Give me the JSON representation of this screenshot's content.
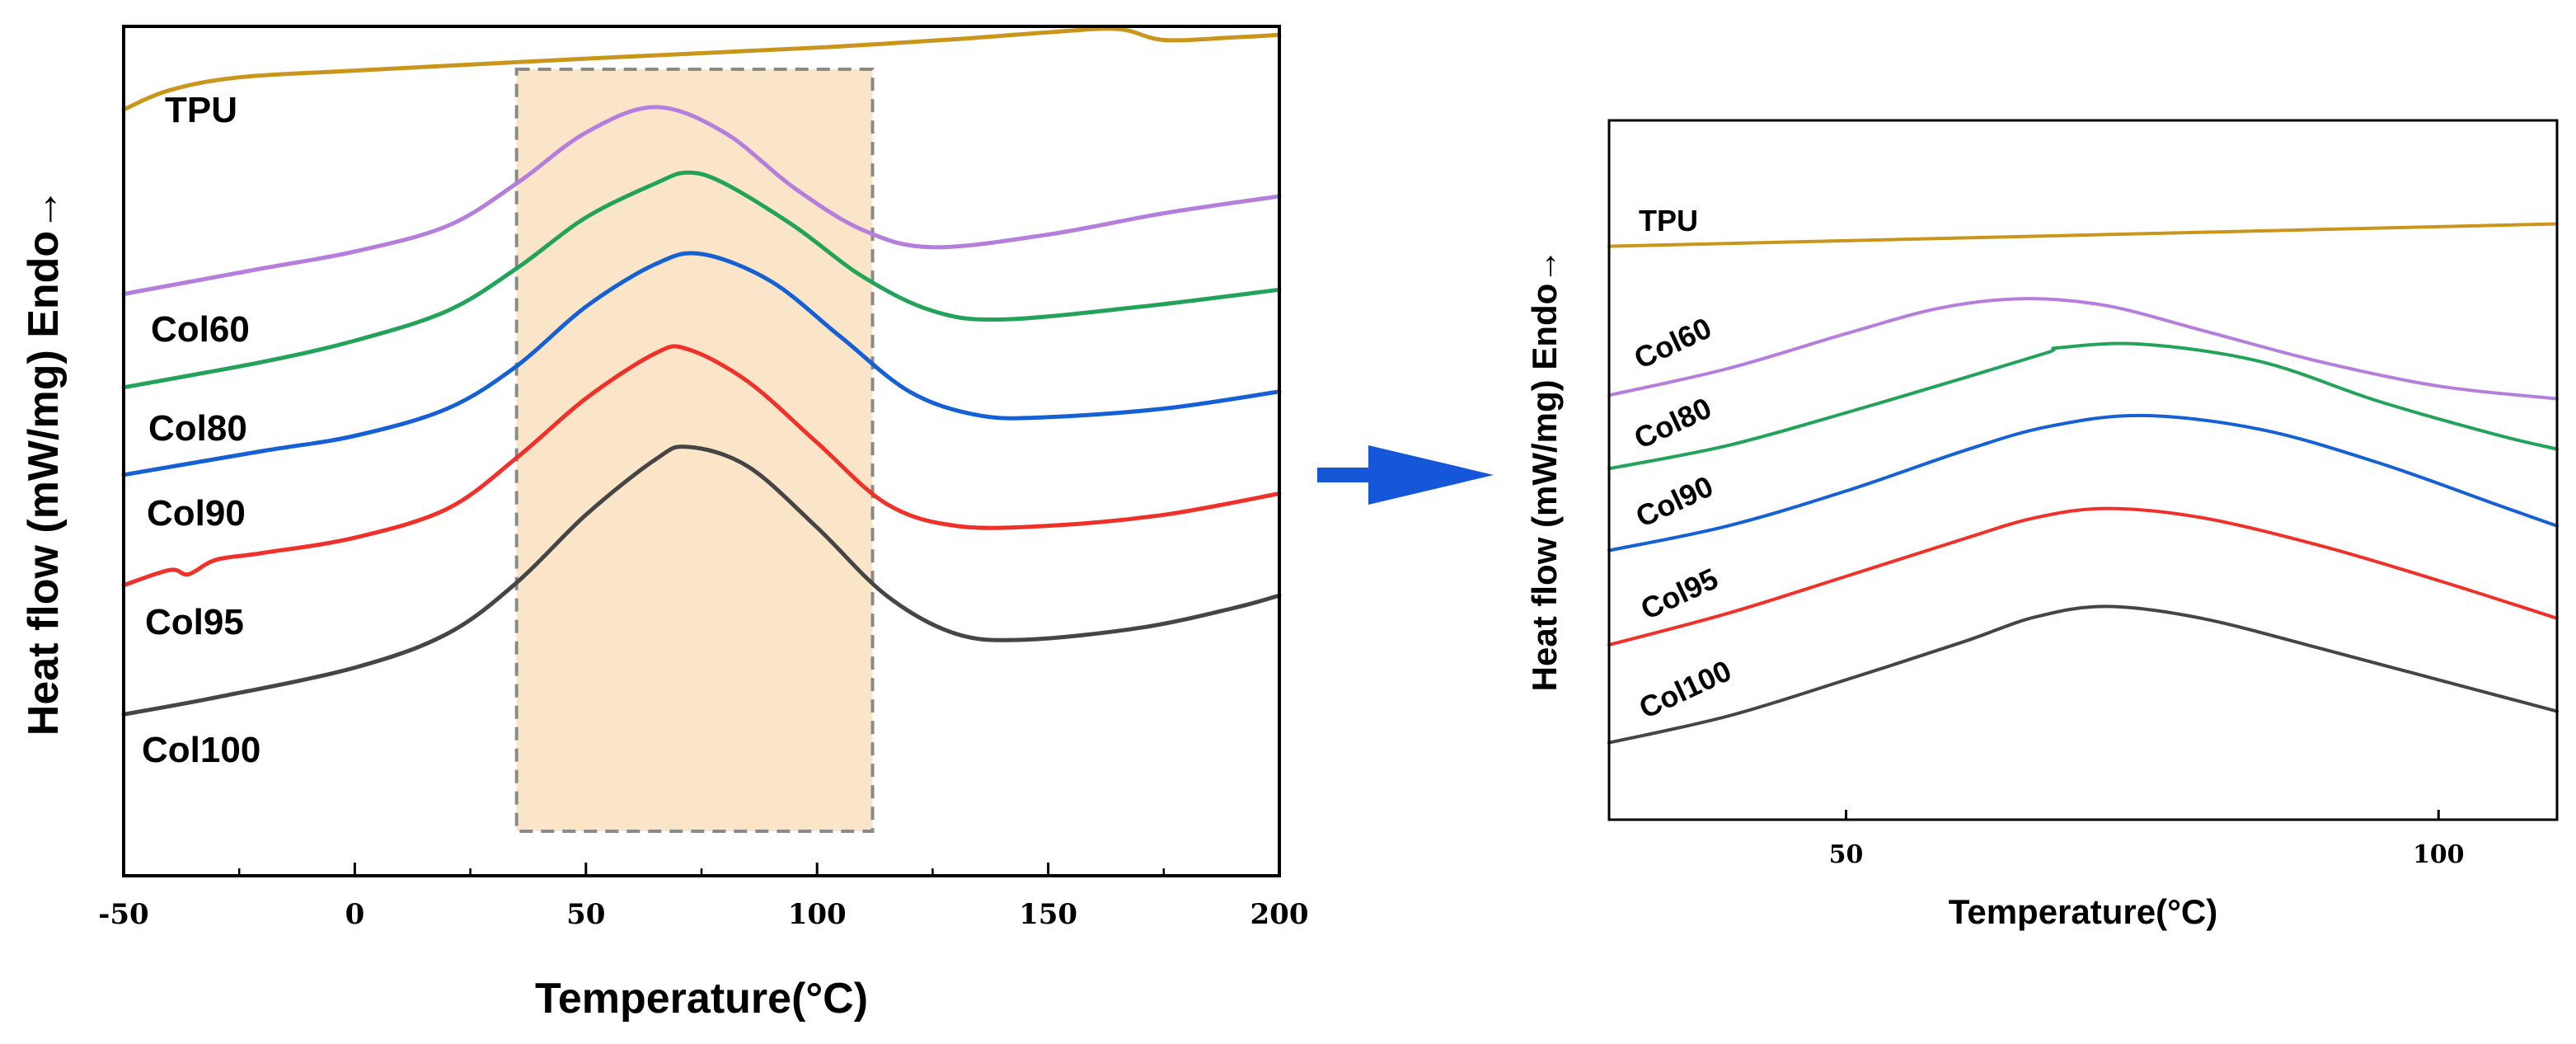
{
  "chart_data": [
    {
      "type": "line",
      "title": "",
      "xlabel": "Temperature(°C)",
      "ylabel": "Heat flow (mW/mg) Endo→",
      "xlim": [
        -50,
        200
      ],
      "xticks": [
        "-50",
        "0",
        "50",
        "100",
        "150",
        "200"
      ],
      "ylim": [
        0,
        10
      ],
      "highlight": {
        "x_range": [
          35,
          112
        ],
        "color": "#fbe5c8",
        "border": "#8a8a8a"
      },
      "series": [
        {
          "name": "TPU",
          "color": "#c9951a",
          "x": [
            -50,
            -40,
            -25,
            0,
            50,
            100,
            130,
            150,
            165,
            175,
            190,
            200
          ],
          "y": [
            9.02,
            9.25,
            9.4,
            9.48,
            9.62,
            9.75,
            9.85,
            9.93,
            9.97,
            9.84,
            9.87,
            9.9
          ]
        },
        {
          "name": "Col60",
          "color": "#b57edc",
          "x": [
            -50,
            -20,
            0,
            20,
            35,
            50,
            65,
            80,
            95,
            110,
            125,
            150,
            175,
            200
          ],
          "y": [
            6.85,
            7.15,
            7.35,
            7.65,
            8.15,
            8.75,
            9.05,
            8.75,
            8.1,
            7.6,
            7.4,
            7.55,
            7.8,
            8.0
          ]
        },
        {
          "name": "Col80",
          "color": "#23a35a",
          "x": [
            -50,
            -20,
            0,
            20,
            35,
            50,
            65,
            72,
            80,
            95,
            110,
            125,
            140,
            170,
            200
          ],
          "y": [
            5.75,
            6.05,
            6.3,
            6.65,
            7.15,
            7.75,
            8.15,
            8.28,
            8.15,
            7.65,
            7.05,
            6.65,
            6.55,
            6.7,
            6.9
          ]
        },
        {
          "name": "Col90",
          "color": "#1560d4",
          "x": [
            -50,
            -20,
            0,
            20,
            35,
            50,
            65,
            75,
            90,
            105,
            120,
            135,
            150,
            175,
            200
          ],
          "y": [
            4.72,
            5.0,
            5.18,
            5.5,
            6.0,
            6.7,
            7.2,
            7.32,
            7.0,
            6.35,
            5.7,
            5.42,
            5.4,
            5.5,
            5.7
          ]
        },
        {
          "name": "Col95",
          "color": "#f0312a",
          "x": [
            -50,
            -40,
            -36,
            -30,
            -20,
            0,
            20,
            35,
            50,
            65,
            72,
            85,
            100,
            115,
            130,
            150,
            175,
            200
          ],
          "y": [
            3.42,
            3.6,
            3.55,
            3.72,
            3.8,
            3.98,
            4.32,
            4.92,
            5.62,
            6.15,
            6.2,
            5.82,
            5.1,
            4.38,
            4.12,
            4.12,
            4.25,
            4.5
          ]
        },
        {
          "name": "Col100",
          "color": "#454545",
          "x": [
            -50,
            -30,
            0,
            20,
            35,
            50,
            65,
            72,
            85,
            100,
            115,
            130,
            145,
            170,
            190,
            200
          ],
          "y": [
            1.9,
            2.1,
            2.45,
            2.85,
            3.45,
            4.25,
            4.9,
            5.05,
            4.82,
            4.1,
            3.3,
            2.85,
            2.78,
            2.92,
            3.15,
            3.3
          ]
        }
      ]
    },
    {
      "type": "line",
      "title": "",
      "xlabel": "Temperature(°C)",
      "ylabel": "Heat flow (mW/mg) Endo→",
      "xlim": [
        30,
        110
      ],
      "xticks": [
        "50",
        "100"
      ],
      "ylim": [
        0,
        10
      ],
      "series": [
        {
          "name": "TPU",
          "color": "#c9951a",
          "x": [
            30,
            50,
            70,
            90,
            110
          ],
          "y": [
            8.2,
            8.28,
            8.36,
            8.44,
            8.52
          ]
        },
        {
          "name": "Col60",
          "color": "#b57edc",
          "x": [
            30,
            40,
            50,
            58,
            65,
            72,
            80,
            90,
            100,
            110
          ],
          "y": [
            6.07,
            6.45,
            6.95,
            7.32,
            7.45,
            7.35,
            7.0,
            6.55,
            6.2,
            6.02
          ]
        },
        {
          "name": "Col80",
          "color": "#23a35a",
          "x": [
            30,
            40,
            50,
            60,
            67,
            68,
            75,
            85,
            95,
            105,
            110
          ],
          "y": [
            5.02,
            5.35,
            5.82,
            6.32,
            6.68,
            6.75,
            6.8,
            6.55,
            5.98,
            5.5,
            5.3
          ]
        },
        {
          "name": "Col90",
          "color": "#1560d4",
          "x": [
            30,
            40,
            50,
            60,
            67,
            75,
            85,
            95,
            105,
            110
          ],
          "y": [
            3.85,
            4.2,
            4.7,
            5.28,
            5.62,
            5.78,
            5.58,
            5.1,
            4.5,
            4.2
          ]
        },
        {
          "name": "Col95",
          "color": "#f0312a",
          "x": [
            30,
            40,
            50,
            60,
            66,
            72,
            80,
            90,
            100,
            110
          ],
          "y": [
            2.5,
            2.95,
            3.48,
            4.02,
            4.32,
            4.45,
            4.32,
            3.92,
            3.42,
            2.88
          ]
        },
        {
          "name": "Col100",
          "color": "#454545",
          "x": [
            30,
            40,
            50,
            60,
            66,
            72,
            80,
            90,
            100,
            110
          ],
          "y": [
            1.1,
            1.48,
            2.0,
            2.55,
            2.9,
            3.05,
            2.88,
            2.45,
            2.0,
            1.55
          ]
        }
      ]
    }
  ],
  "arrow_color": "#1656d8"
}
